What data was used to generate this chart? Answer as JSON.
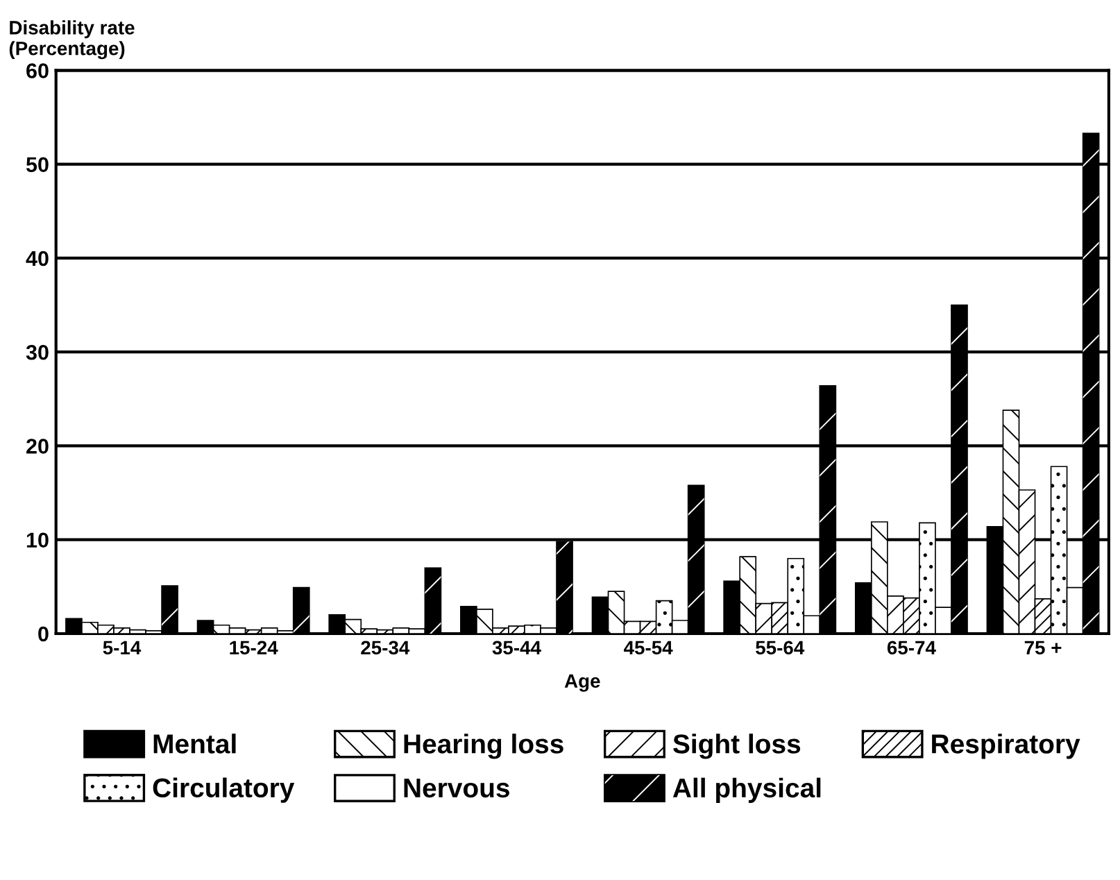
{
  "chart_data": {
    "type": "bar",
    "ylabel": "Disability rate\n(Percentage)",
    "xlabel": "Age",
    "categories": [
      "5-14",
      "15-24",
      "25-34",
      "35-44",
      "45-54",
      "55-64",
      "65-74",
      "75 +"
    ],
    "series": [
      {
        "name": "Mental",
        "color": "#000000",
        "values": [
          1.6,
          1.4,
          2.0,
          2.9,
          3.9,
          5.6,
          5.4,
          11.4
        ]
      },
      {
        "name": "Hearing loss",
        "color": "#ffffff",
        "values": [
          1.2,
          0.9,
          1.5,
          2.6,
          4.5,
          8.2,
          11.9,
          23.8
        ]
      },
      {
        "name": "Sight loss",
        "color": "#ffffff",
        "values": [
          0.9,
          0.6,
          0.5,
          0.6,
          1.3,
          3.2,
          4.0,
          15.3
        ]
      },
      {
        "name": "Respiratory",
        "color": "#ffffff",
        "values": [
          0.6,
          0.4,
          0.4,
          0.8,
          1.3,
          3.3,
          3.8,
          3.7
        ]
      },
      {
        "name": "Circulatory",
        "color": "#ffffff",
        "values": [
          0.4,
          0.6,
          0.6,
          0.9,
          3.5,
          8.0,
          11.8,
          17.8
        ]
      },
      {
        "name": "Nervous",
        "color": "#ffffff",
        "values": [
          0.3,
          0.3,
          0.5,
          0.6,
          1.4,
          1.9,
          2.8,
          4.9
        ]
      },
      {
        "name": "All physical",
        "color": "#000000",
        "values": [
          5.1,
          4.9,
          7.0,
          9.8,
          15.8,
          26.4,
          35.0,
          53.3
        ]
      }
    ],
    "ylim": [
      0,
      60
    ],
    "yticks": [
      0,
      10,
      20,
      30,
      40,
      50,
      60
    ],
    "grid": "y",
    "legend": "bottom"
  }
}
